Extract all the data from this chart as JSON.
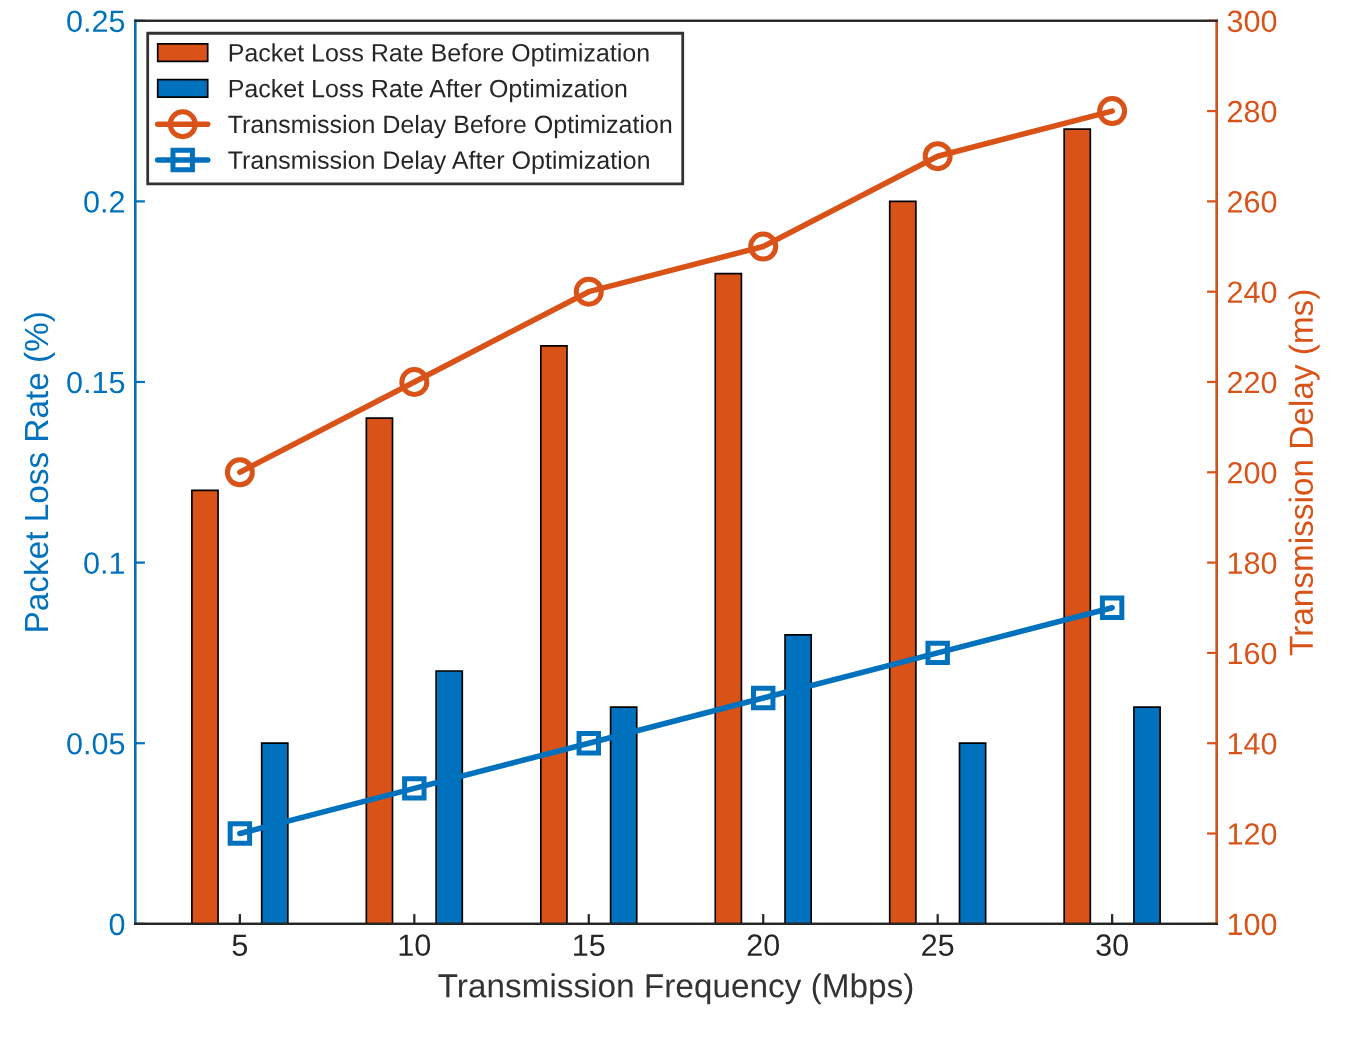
{
  "chart_data": {
    "type": "bar",
    "xlabel": "Transmission Frequency (Mbps)",
    "ylabel": "Packet Loss Rate (%)",
    "y2label": "Transmission Delay (ms)",
    "categories": [
      "5",
      "10",
      "15",
      "20",
      "25",
      "30"
    ],
    "series": [
      {
        "name": "Packet Loss Rate Before Optimization",
        "color": "#d95319",
        "values": [
          0.12,
          0.14,
          0.16,
          0.18,
          0.2,
          0.22
        ]
      },
      {
        "name": "Packet Loss Rate After Optimization",
        "color": "#0072bd",
        "values": [
          0.05,
          0.07,
          0.06,
          0.08,
          0.05,
          0.06
        ]
      },
      {
        "name": "Transmission Delay Before Optimization",
        "type": "line",
        "axis": "y2",
        "marker": "circle",
        "line_style": "solid",
        "color": "#d95319",
        "values": [
          200,
          220,
          240,
          250,
          270,
          280
        ]
      },
      {
        "name": "Transmission Delay After Optimization",
        "type": "line",
        "axis": "y2",
        "marker": "square",
        "line_style": "solid",
        "color": "#0072bd",
        "values": [
          120,
          130,
          140,
          150,
          160,
          170
        ]
      }
    ],
    "ylim": [
      0,
      0.25
    ],
    "yticks": [
      0,
      0.05,
      0.1,
      0.15,
      0.2,
      0.25
    ],
    "y2lim": [
      100,
      300
    ],
    "y2ticks": [
      100,
      120,
      140,
      160,
      180,
      200,
      220,
      240,
      260,
      280,
      300
    ],
    "legend": "top left",
    "grid": false
  }
}
